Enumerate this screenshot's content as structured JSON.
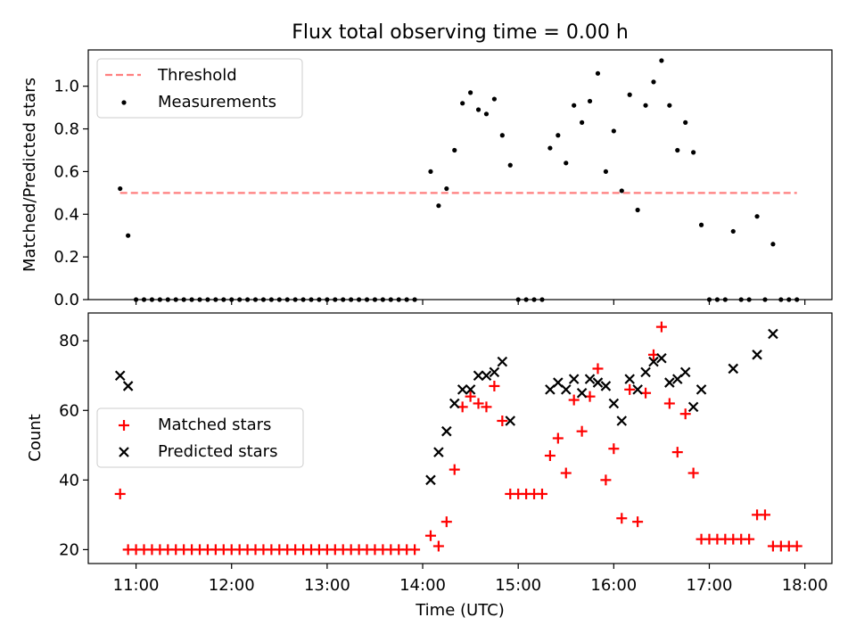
{
  "figure": {
    "title": "Flux total observing time = 0.00 h",
    "xlabel": "Time (UTC)",
    "x_ticks": [
      "11:00",
      "12:00",
      "13:00",
      "14:00",
      "15:00",
      "16:00",
      "17:00",
      "18:00"
    ]
  },
  "chart_data": [
    {
      "type": "scatter",
      "title": "Flux total observing time = 0.00 h",
      "ylabel": "Matched/Predicted stars",
      "xlim": [
        "10:30",
        "18:17"
      ],
      "ylim": [
        0,
        1.17
      ],
      "y_ticks": [
        "0.0",
        "0.2",
        "0.4",
        "0.6",
        "0.8",
        "1.0"
      ],
      "grid": false,
      "legend_position": "upper left",
      "threshold": {
        "name": "Threshold",
        "value": 0.5,
        "x_range": [
          "10:50",
          "17:55"
        ],
        "color": "#ff7f7f",
        "style": "dashed"
      },
      "series": [
        {
          "name": "Measurements",
          "color": "#000000",
          "marker": "dot",
          "points": [
            [
              "10:50",
              0.52
            ],
            [
              "10:55",
              0.3
            ],
            [
              "11:00",
              0.0
            ],
            [
              "11:05",
              0.0
            ],
            [
              "11:10",
              0.0
            ],
            [
              "11:15",
              0.0
            ],
            [
              "11:20",
              0.0
            ],
            [
              "11:25",
              0.0
            ],
            [
              "11:30",
              0.0
            ],
            [
              "11:35",
              0.0
            ],
            [
              "11:40",
              0.0
            ],
            [
              "11:45",
              0.0
            ],
            [
              "11:50",
              0.0
            ],
            [
              "11:55",
              0.0
            ],
            [
              "12:00",
              0.0
            ],
            [
              "12:05",
              0.0
            ],
            [
              "12:10",
              0.0
            ],
            [
              "12:15",
              0.0
            ],
            [
              "12:20",
              0.0
            ],
            [
              "12:25",
              0.0
            ],
            [
              "12:30",
              0.0
            ],
            [
              "12:35",
              0.0
            ],
            [
              "12:40",
              0.0
            ],
            [
              "12:45",
              0.0
            ],
            [
              "12:50",
              0.0
            ],
            [
              "12:55",
              0.0
            ],
            [
              "13:00",
              0.0
            ],
            [
              "13:05",
              0.0
            ],
            [
              "13:10",
              0.0
            ],
            [
              "13:15",
              0.0
            ],
            [
              "13:20",
              0.0
            ],
            [
              "13:25",
              0.0
            ],
            [
              "13:30",
              0.0
            ],
            [
              "13:35",
              0.0
            ],
            [
              "13:40",
              0.0
            ],
            [
              "13:45",
              0.0
            ],
            [
              "13:50",
              0.0
            ],
            [
              "13:55",
              0.0
            ],
            [
              "14:05",
              0.6
            ],
            [
              "14:10",
              0.44
            ],
            [
              "14:15",
              0.52
            ],
            [
              "14:20",
              0.7
            ],
            [
              "14:25",
              0.92
            ],
            [
              "14:30",
              0.97
            ],
            [
              "14:35",
              0.89
            ],
            [
              "14:40",
              0.87
            ],
            [
              "14:45",
              0.94
            ],
            [
              "14:50",
              0.77
            ],
            [
              "14:55",
              0.63
            ],
            [
              "15:00",
              0.0
            ],
            [
              "15:05",
              0.0
            ],
            [
              "15:10",
              0.0
            ],
            [
              "15:15",
              0.0
            ],
            [
              "15:20",
              0.71
            ],
            [
              "15:25",
              0.77
            ],
            [
              "15:30",
              0.64
            ],
            [
              "15:35",
              0.91
            ],
            [
              "15:40",
              0.83
            ],
            [
              "15:45",
              0.93
            ],
            [
              "15:50",
              1.06
            ],
            [
              "15:55",
              0.6
            ],
            [
              "16:00",
              0.79
            ],
            [
              "16:05",
              0.51
            ],
            [
              "16:10",
              0.96
            ],
            [
              "16:15",
              0.42
            ],
            [
              "16:20",
              0.91
            ],
            [
              "16:25",
              1.02
            ],
            [
              "16:30",
              1.12
            ],
            [
              "16:35",
              0.91
            ],
            [
              "16:40",
              0.7
            ],
            [
              "16:45",
              0.83
            ],
            [
              "16:50",
              0.69
            ],
            [
              "16:55",
              0.35
            ],
            [
              "17:00",
              0.0
            ],
            [
              "17:05",
              0.0
            ],
            [
              "17:10",
              0.0
            ],
            [
              "17:15",
              0.32
            ],
            [
              "17:20",
              0.0
            ],
            [
              "17:25",
              0.0
            ],
            [
              "17:30",
              0.39
            ],
            [
              "17:35",
              0.0
            ],
            [
              "17:40",
              0.26
            ],
            [
              "17:45",
              0.0
            ],
            [
              "17:50",
              0.0
            ],
            [
              "17:55",
              0.0
            ]
          ]
        }
      ]
    },
    {
      "type": "scatter",
      "ylabel": "Count",
      "xlabel": "Time (UTC)",
      "xlim": [
        "10:30",
        "18:17"
      ],
      "ylim": [
        16,
        88
      ],
      "y_ticks": [
        "20",
        "40",
        "60",
        "80"
      ],
      "grid": false,
      "legend_position": "center left",
      "series": [
        {
          "name": "Matched stars",
          "color": "#ff0000",
          "marker": "plus",
          "points": [
            [
              "10:50",
              36
            ],
            [
              "10:55",
              20
            ],
            [
              "11:00",
              20
            ],
            [
              "11:05",
              20
            ],
            [
              "11:10",
              20
            ],
            [
              "11:15",
              20
            ],
            [
              "11:20",
              20
            ],
            [
              "11:25",
              20
            ],
            [
              "11:30",
              20
            ],
            [
              "11:35",
              20
            ],
            [
              "11:40",
              20
            ],
            [
              "11:45",
              20
            ],
            [
              "11:50",
              20
            ],
            [
              "11:55",
              20
            ],
            [
              "12:00",
              20
            ],
            [
              "12:05",
              20
            ],
            [
              "12:10",
              20
            ],
            [
              "12:15",
              20
            ],
            [
              "12:20",
              20
            ],
            [
              "12:25",
              20
            ],
            [
              "12:30",
              20
            ],
            [
              "12:35",
              20
            ],
            [
              "12:40",
              20
            ],
            [
              "12:45",
              20
            ],
            [
              "12:50",
              20
            ],
            [
              "12:55",
              20
            ],
            [
              "13:00",
              20
            ],
            [
              "13:05",
              20
            ],
            [
              "13:10",
              20
            ],
            [
              "13:15",
              20
            ],
            [
              "13:20",
              20
            ],
            [
              "13:25",
              20
            ],
            [
              "13:30",
              20
            ],
            [
              "13:35",
              20
            ],
            [
              "13:40",
              20
            ],
            [
              "13:45",
              20
            ],
            [
              "13:50",
              20
            ],
            [
              "13:55",
              20
            ],
            [
              "14:05",
              24
            ],
            [
              "14:10",
              21
            ],
            [
              "14:15",
              28
            ],
            [
              "14:20",
              43
            ],
            [
              "14:25",
              61
            ],
            [
              "14:30",
              64
            ],
            [
              "14:35",
              62
            ],
            [
              "14:40",
              61
            ],
            [
              "14:45",
              67
            ],
            [
              "14:50",
              57
            ],
            [
              "14:55",
              36
            ],
            [
              "15:00",
              36
            ],
            [
              "15:05",
              36
            ],
            [
              "15:10",
              36
            ],
            [
              "15:15",
              36
            ],
            [
              "15:20",
              47
            ],
            [
              "15:25",
              52
            ],
            [
              "15:30",
              42
            ],
            [
              "15:35",
              63
            ],
            [
              "15:40",
              54
            ],
            [
              "15:45",
              64
            ],
            [
              "15:50",
              72
            ],
            [
              "15:55",
              40
            ],
            [
              "16:00",
              49
            ],
            [
              "16:05",
              29
            ],
            [
              "16:10",
              66
            ],
            [
              "16:15",
              28
            ],
            [
              "16:20",
              65
            ],
            [
              "16:25",
              76
            ],
            [
              "16:30",
              84
            ],
            [
              "16:35",
              62
            ],
            [
              "16:40",
              48
            ],
            [
              "16:45",
              59
            ],
            [
              "16:50",
              42
            ],
            [
              "16:55",
              23
            ],
            [
              "17:00",
              23
            ],
            [
              "17:05",
              23
            ],
            [
              "17:10",
              23
            ],
            [
              "17:15",
              23
            ],
            [
              "17:20",
              23
            ],
            [
              "17:25",
              23
            ],
            [
              "17:30",
              30
            ],
            [
              "17:35",
              30
            ],
            [
              "17:40",
              21
            ],
            [
              "17:45",
              21
            ],
            [
              "17:50",
              21
            ],
            [
              "17:55",
              21
            ]
          ]
        },
        {
          "name": "Predicted stars",
          "color": "#000000",
          "marker": "x",
          "points": [
            [
              "10:50",
              70
            ],
            [
              "10:55",
              67
            ],
            [
              "14:05",
              40
            ],
            [
              "14:10",
              48
            ],
            [
              "14:15",
              54
            ],
            [
              "14:20",
              62
            ],
            [
              "14:25",
              66
            ],
            [
              "14:30",
              66
            ],
            [
              "14:35",
              70
            ],
            [
              "14:40",
              70
            ],
            [
              "14:45",
              71
            ],
            [
              "14:50",
              74
            ],
            [
              "14:55",
              57
            ],
            [
              "15:20",
              66
            ],
            [
              "15:25",
              68
            ],
            [
              "15:30",
              66
            ],
            [
              "15:35",
              69
            ],
            [
              "15:40",
              65
            ],
            [
              "15:45",
              69
            ],
            [
              "15:50",
              68
            ],
            [
              "15:55",
              67
            ],
            [
              "16:00",
              62
            ],
            [
              "16:05",
              57
            ],
            [
              "16:10",
              69
            ],
            [
              "16:15",
              66
            ],
            [
              "16:20",
              71
            ],
            [
              "16:25",
              74
            ],
            [
              "16:30",
              75
            ],
            [
              "16:35",
              68
            ],
            [
              "16:40",
              69
            ],
            [
              "16:45",
              71
            ],
            [
              "16:50",
              61
            ],
            [
              "16:55",
              66
            ],
            [
              "17:15",
              72
            ],
            [
              "17:30",
              76
            ],
            [
              "17:40",
              82
            ]
          ]
        }
      ]
    }
  ]
}
